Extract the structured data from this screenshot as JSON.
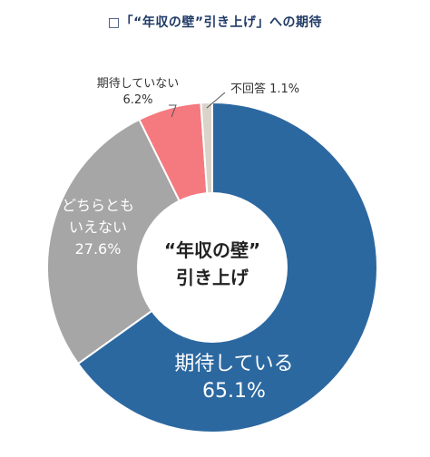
{
  "chart_data": {
    "type": "pie",
    "title": "□「“年収の壁”引き上げ」への期待",
    "center_label": [
      "“年収の壁”",
      "引き上げ"
    ],
    "slices": [
      {
        "name": "期待している",
        "label_lines": [
          "期待している"
        ],
        "value": 65.1,
        "value_label": "65.1%",
        "color": "#2c68a0"
      },
      {
        "name": "どちらともいえない",
        "label_lines": [
          "どちらとも",
          "いえない"
        ],
        "value": 27.6,
        "value_label": "27.6%",
        "color": "#a6a6a6"
      },
      {
        "name": "期待していない",
        "label_lines": [
          "期待していない"
        ],
        "value": 6.2,
        "value_label": "6.2%",
        "color": "#f47a7f"
      },
      {
        "name": "不回答",
        "label_lines": [
          "不回答"
        ],
        "value": 1.1,
        "value_label": "1.1%",
        "color": "#d9d3c9"
      }
    ]
  }
}
